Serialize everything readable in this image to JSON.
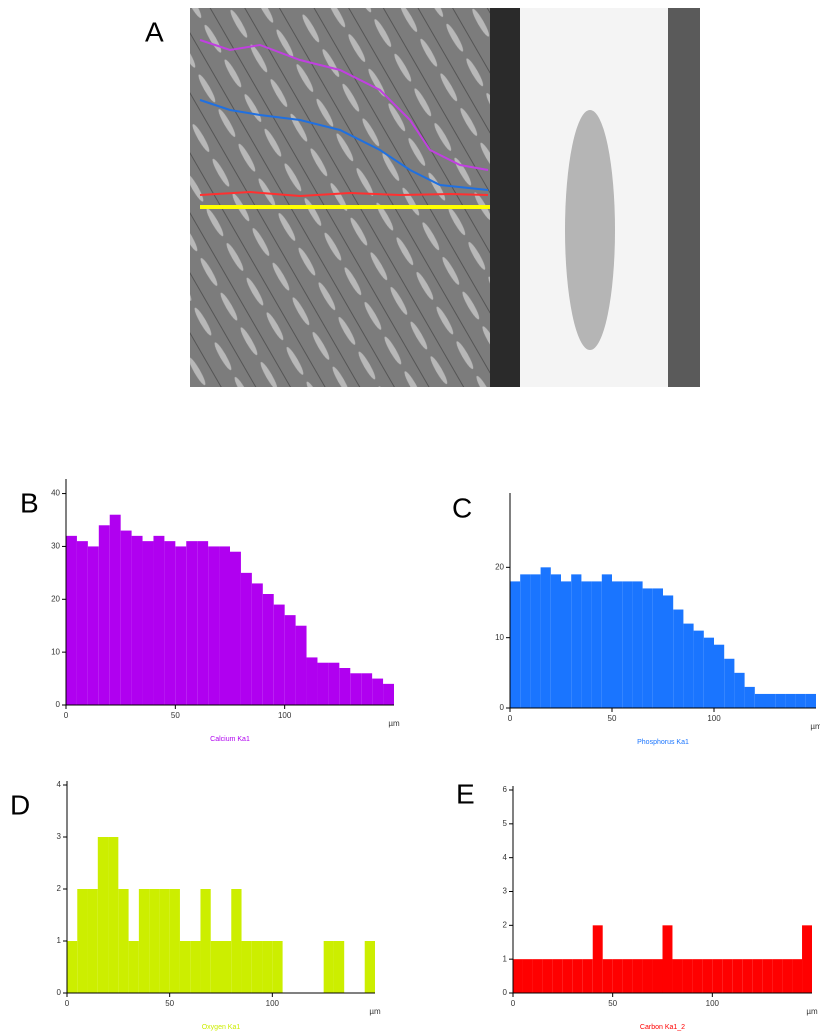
{
  "image": {
    "label": "A"
  },
  "chart_data": [
    {
      "panel": "B",
      "type": "histogram",
      "title": "Calcium Ka1",
      "x_label": "µm",
      "color": "#b000f0",
      "bins": [
        0,
        5,
        10,
        15,
        20,
        25,
        30,
        35,
        40,
        45,
        50,
        55,
        60,
        65,
        70,
        75,
        80,
        85,
        90,
        95,
        100,
        105,
        110,
        115,
        120,
        125,
        130,
        135,
        140,
        145,
        150
      ],
      "values": [
        32,
        31,
        30,
        34,
        36,
        33,
        32,
        31,
        32,
        31,
        30,
        31,
        31,
        30,
        30,
        29,
        25,
        23,
        21,
        19,
        17,
        15,
        9,
        8,
        8,
        7,
        6,
        6,
        5,
        4
      ],
      "xlim": [
        0,
        150
      ],
      "ylim": [
        0,
        42
      ],
      "xticks": [
        0,
        50,
        100
      ],
      "yticks": [
        0,
        10,
        20,
        30,
        40
      ]
    },
    {
      "panel": "C",
      "type": "histogram",
      "title": "Phosphorus Ka1",
      "x_label": "µm",
      "color": "#1a75ff",
      "bins": [
        0,
        5,
        10,
        15,
        20,
        25,
        30,
        35,
        40,
        45,
        50,
        55,
        60,
        65,
        70,
        75,
        80,
        85,
        90,
        95,
        100,
        105,
        110,
        115,
        120,
        125,
        130,
        135,
        140,
        145,
        150
      ],
      "values": [
        18,
        19,
        19,
        20,
        19,
        18,
        19,
        18,
        18,
        19,
        18,
        18,
        18,
        17,
        17,
        16,
        14,
        12,
        11,
        10,
        9,
        7,
        5,
        3,
        2,
        2,
        2,
        2,
        2,
        2
      ],
      "xlim": [
        0,
        150
      ],
      "ylim": [
        0,
        30
      ],
      "xticks": [
        0,
        50,
        100
      ],
      "yticks": [
        0,
        10,
        20
      ]
    },
    {
      "panel": "D",
      "type": "histogram",
      "title": "Oxygen Ka1",
      "x_label": "µm",
      "color": "#ccee00",
      "bins": [
        0,
        5,
        10,
        15,
        20,
        25,
        30,
        35,
        40,
        45,
        50,
        55,
        60,
        65,
        70,
        75,
        80,
        85,
        90,
        95,
        100,
        105,
        110,
        115,
        120,
        125,
        130,
        135,
        140,
        145,
        150
      ],
      "values": [
        1,
        2,
        2,
        3,
        3,
        2,
        1,
        2,
        2,
        2,
        2,
        1,
        1,
        2,
        1,
        1,
        2,
        1,
        1,
        1,
        1,
        0,
        0,
        0,
        0,
        1,
        1,
        0,
        0,
        1
      ],
      "xlim": [
        0,
        150
      ],
      "ylim": [
        0,
        4
      ],
      "xticks": [
        0,
        50,
        100
      ],
      "yticks": [
        0,
        1,
        2,
        3,
        4
      ]
    },
    {
      "panel": "E",
      "type": "histogram",
      "title": "Carbon Ka1_2",
      "x_label": "µm",
      "color": "#ff0000",
      "bins": [
        0,
        5,
        10,
        15,
        20,
        25,
        30,
        35,
        40,
        45,
        50,
        55,
        60,
        65,
        70,
        75,
        80,
        85,
        90,
        95,
        100,
        105,
        110,
        115,
        120,
        125,
        130,
        135,
        140,
        145,
        150
      ],
      "values": [
        1,
        1,
        1,
        1,
        1,
        1,
        1,
        1,
        2,
        1,
        1,
        1,
        1,
        1,
        1,
        2,
        1,
        1,
        1,
        1,
        1,
        1,
        1,
        1,
        1,
        1,
        1,
        1,
        1,
        2
      ],
      "xlim": [
        0,
        150
      ],
      "ylim": [
        0,
        6
      ],
      "xticks": [
        0,
        50,
        100
      ],
      "yticks": [
        0,
        1,
        2,
        3,
        4,
        5,
        6
      ]
    }
  ]
}
